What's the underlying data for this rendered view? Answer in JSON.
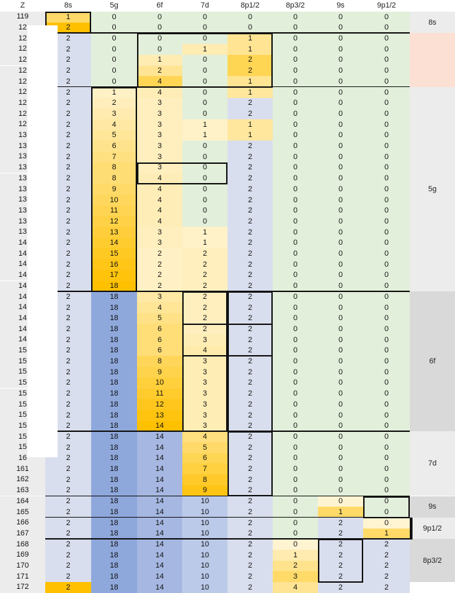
{
  "headers": [
    "Z",
    "8s",
    "5g",
    "6f",
    "7d",
    "8p1/2",
    "8p3/2",
    "9s",
    "9p1/2"
  ],
  "blocks": [
    {
      "label": "8s",
      "color": "#ececec"
    },
    {
      "label": "",
      "color": "#fbe0d3"
    },
    {
      "label": "5g",
      "color": "#ececec"
    },
    {
      "label": "6f",
      "color": "#d9d9d9"
    },
    {
      "label": "7d",
      "color": "#ececec"
    },
    {
      "label": "9s",
      "color": "#d9d9d9"
    },
    {
      "label": "9p1/2",
      "color": "#ececec"
    },
    {
      "label": "8p3/2",
      "color": "#d9d9d9"
    }
  ],
  "rows": [
    {
      "z": "119",
      "v": [
        1,
        0,
        0,
        0,
        0,
        0,
        0,
        0
      ]
    },
    {
      "z": "12",
      "v": [
        2,
        0,
        0,
        0,
        0,
        0,
        0,
        0
      ]
    },
    {
      "z": "12",
      "v": [
        2,
        0,
        0,
        0,
        1,
        0,
        0,
        0
      ]
    },
    {
      "z": "12",
      "v": [
        2,
        0,
        0,
        1,
        1,
        0,
        0,
        0
      ]
    },
    {
      "z": "12",
      "v": [
        2,
        0,
        1,
        0,
        2,
        0,
        0,
        0
      ]
    },
    {
      "z": "12",
      "v": [
        2,
        0,
        2,
        0,
        2,
        0,
        0,
        0
      ]
    },
    {
      "z": "12",
      "v": [
        2,
        0,
        4,
        0,
        1,
        0,
        0,
        0
      ]
    },
    {
      "z": "12",
      "v": [
        2,
        1,
        4,
        0,
        1,
        0,
        0,
        0
      ]
    },
    {
      "z": "12",
      "v": [
        2,
        2,
        3,
        0,
        2,
        0,
        0,
        0
      ]
    },
    {
      "z": "12",
      "v": [
        2,
        3,
        3,
        0,
        2,
        0,
        0,
        0
      ]
    },
    {
      "z": "12",
      "v": [
        2,
        4,
        3,
        1,
        1,
        0,
        0,
        0
      ]
    },
    {
      "z": "13",
      "v": [
        2,
        5,
        3,
        1,
        1,
        0,
        0,
        0
      ]
    },
    {
      "z": "13",
      "v": [
        2,
        6,
        3,
        0,
        2,
        0,
        0,
        0
      ]
    },
    {
      "z": "13",
      "v": [
        2,
        7,
        3,
        0,
        2,
        0,
        0,
        0
      ]
    },
    {
      "z": "13",
      "v": [
        2,
        8,
        3,
        0,
        2,
        0,
        0,
        0
      ]
    },
    {
      "z": "13",
      "v": [
        2,
        8,
        4,
        0,
        2,
        0,
        0,
        0
      ]
    },
    {
      "z": "13",
      "v": [
        2,
        9,
        4,
        0,
        2,
        0,
        0,
        0
      ]
    },
    {
      "z": "13",
      "v": [
        2,
        10,
        4,
        0,
        2,
        0,
        0,
        0
      ]
    },
    {
      "z": "13",
      "v": [
        2,
        11,
        4,
        0,
        2,
        0,
        0,
        0
      ]
    },
    {
      "z": "13",
      "v": [
        2,
        12,
        4,
        0,
        2,
        0,
        0,
        0
      ]
    },
    {
      "z": "13",
      "v": [
        2,
        13,
        3,
        1,
        2,
        0,
        0,
        0
      ]
    },
    {
      "z": "14",
      "v": [
        2,
        14,
        3,
        1,
        2,
        0,
        0,
        0
      ]
    },
    {
      "z": "14",
      "v": [
        2,
        15,
        2,
        2,
        2,
        0,
        0,
        0
      ]
    },
    {
      "z": "14",
      "v": [
        2,
        16,
        2,
        2,
        2,
        0,
        0,
        0
      ]
    },
    {
      "z": "14",
      "v": [
        2,
        17,
        2,
        2,
        2,
        0,
        0,
        0
      ]
    },
    {
      "z": "14",
      "v": [
        2,
        18,
        2,
        2,
        2,
        0,
        0,
        0
      ]
    },
    {
      "z": "14",
      "v": [
        2,
        18,
        3,
        2,
        2,
        0,
        0,
        0
      ]
    },
    {
      "z": "14",
      "v": [
        2,
        18,
        4,
        2,
        2,
        0,
        0,
        0
      ]
    },
    {
      "z": "14",
      "v": [
        2,
        18,
        5,
        2,
        2,
        0,
        0,
        0
      ]
    },
    {
      "z": "14",
      "v": [
        2,
        18,
        6,
        2,
        2,
        0,
        0,
        0
      ]
    },
    {
      "z": "14",
      "v": [
        2,
        18,
        6,
        3,
        2,
        0,
        0,
        0
      ]
    },
    {
      "z": "15",
      "v": [
        2,
        18,
        6,
        4,
        2,
        0,
        0,
        0
      ]
    },
    {
      "z": "15",
      "v": [
        2,
        18,
        8,
        3,
        2,
        0,
        0,
        0
      ]
    },
    {
      "z": "15",
      "v": [
        2,
        18,
        9,
        3,
        2,
        0,
        0,
        0
      ]
    },
    {
      "z": "15",
      "v": [
        2,
        18,
        10,
        3,
        2,
        0,
        0,
        0
      ]
    },
    {
      "z": "15",
      "v": [
        2,
        18,
        11,
        3,
        2,
        0,
        0,
        0
      ]
    },
    {
      "z": "15",
      "v": [
        2,
        18,
        12,
        3,
        2,
        0,
        0,
        0
      ]
    },
    {
      "z": "15",
      "v": [
        2,
        18,
        13,
        3,
        2,
        0,
        0,
        0
      ]
    },
    {
      "z": "15",
      "v": [
        2,
        18,
        14,
        3,
        2,
        0,
        0,
        0
      ]
    },
    {
      "z": "15",
      "v": [
        2,
        18,
        14,
        4,
        2,
        0,
        0,
        0
      ]
    },
    {
      "z": "15",
      "v": [
        2,
        18,
        14,
        5,
        2,
        0,
        0,
        0
      ]
    },
    {
      "z": "16",
      "v": [
        2,
        18,
        14,
        6,
        2,
        0,
        0,
        0
      ]
    },
    {
      "z": "161",
      "v": [
        2,
        18,
        14,
        7,
        2,
        0,
        0,
        0
      ]
    },
    {
      "z": "162",
      "v": [
        2,
        18,
        14,
        8,
        2,
        0,
        0,
        0
      ]
    },
    {
      "z": "163",
      "v": [
        2,
        18,
        14,
        9,
        2,
        0,
        0,
        0
      ]
    },
    {
      "z": "164",
      "v": [
        2,
        18,
        14,
        10,
        2,
        0,
        0,
        0
      ]
    },
    {
      "z": "165",
      "v": [
        2,
        18,
        14,
        10,
        2,
        0,
        1,
        0
      ]
    },
    {
      "z": "166",
      "v": [
        2,
        18,
        14,
        10,
        2,
        0,
        2,
        0
      ]
    },
    {
      "z": "167",
      "v": [
        2,
        18,
        14,
        10,
        2,
        0,
        2,
        1
      ]
    },
    {
      "z": "168",
      "v": [
        2,
        18,
        14,
        10,
        2,
        0,
        2,
        2
      ]
    },
    {
      "z": "169",
      "v": [
        2,
        18,
        14,
        10,
        2,
        1,
        2,
        2
      ]
    },
    {
      "z": "170",
      "v": [
        2,
        18,
        14,
        10,
        2,
        2,
        2,
        2
      ]
    },
    {
      "z": "171",
      "v": [
        2,
        18,
        14,
        10,
        2,
        3,
        2,
        2
      ]
    },
    {
      "z": "172",
      "v": [
        2,
        18,
        14,
        10,
        2,
        4,
        2,
        2
      ]
    }
  ]
}
